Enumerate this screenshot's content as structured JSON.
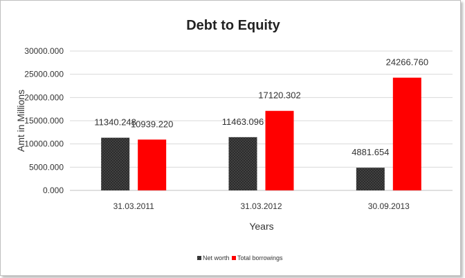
{
  "chart_data": {
    "type": "bar",
    "title": "Debt to Equity",
    "xlabel": "Years",
    "ylabel": "Amt in Millions",
    "categories": [
      "31.03.2011",
      "31.03.2012",
      "30.09.2013"
    ],
    "series": [
      {
        "name": "Net worth",
        "values": [
          11340.248,
          11463.096,
          4881.654
        ],
        "labels": [
          "11340.248",
          "11463.096",
          "4881.654"
        ],
        "color": "#404040",
        "pattern": "crosshatch"
      },
      {
        "name": "Total borrowings",
        "values": [
          10939.22,
          17120.302,
          24266.76
        ],
        "labels": [
          "10939.220",
          "17120.302",
          "24266.760"
        ],
        "color": "#ff0000",
        "pattern": "solid"
      }
    ],
    "ylim": [
      0,
      30000
    ],
    "yticks": [
      0,
      5000,
      10000,
      15000,
      20000,
      25000,
      30000
    ],
    "ytick_labels": [
      "0.000",
      "5000.000",
      "10000.000",
      "15000.000",
      "20000.000",
      "25000.000",
      "30000.000"
    ],
    "grid": true,
    "legend_position": "bottom"
  }
}
